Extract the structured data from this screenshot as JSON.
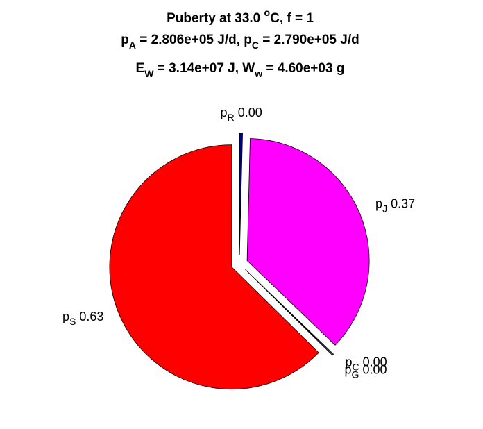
{
  "chart_data": {
    "type": "pie",
    "title": [
      [
        "Puberty at 33.0 ",
        "o",
        "C, f = 1"
      ],
      [
        "p",
        "A",
        " = 2.806e+05 J/d,  p",
        "C",
        " = 2.790e+05 J/d"
      ],
      [
        "E",
        "W",
        " = 3.14e+07 J, W",
        "w",
        " = 4.60e+03 g"
      ]
    ],
    "category_symbol": "p",
    "categories": [
      "R",
      "J",
      "C",
      "G",
      "S"
    ],
    "values": [
      0.004,
      0.37,
      0.001,
      0.001,
      0.63
    ],
    "value_labels": [
      "0.00",
      "0.37",
      "0.00",
      "0.00",
      "0.63"
    ],
    "colors": [
      "#00008b",
      "#ff00ff",
      "#ffffff",
      "#ffffff",
      "#ff0000"
    ],
    "exploded": true
  }
}
